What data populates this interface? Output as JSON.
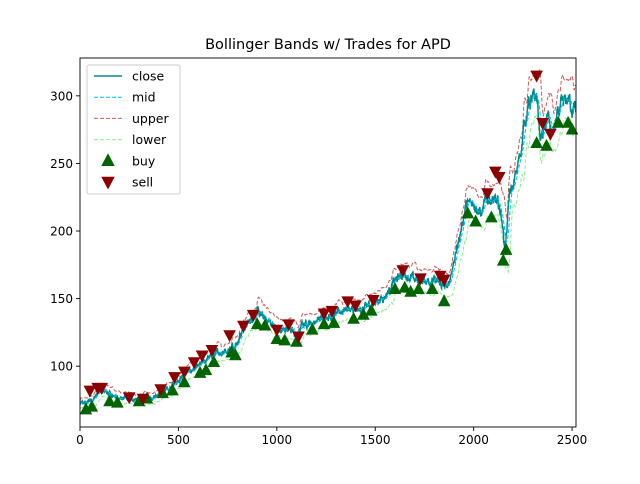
{
  "chart_data": {
    "type": "line",
    "title": "Bollinger Bands w/ Trades for APD",
    "xlabel": "",
    "ylabel": "",
    "xlim": [
      0,
      2520
    ],
    "ylim": [
      55,
      328
    ],
    "grid": false,
    "legend_position": "top-left",
    "x_ticks": [
      0,
      500,
      1000,
      1500,
      2000,
      2500
    ],
    "y_ticks": [
      100,
      150,
      200,
      250,
      300
    ],
    "close_anchors": [
      [
        0,
        72
      ],
      [
        40,
        73
      ],
      [
        80,
        78
      ],
      [
        110,
        82
      ],
      [
        150,
        80
      ],
      [
        200,
        76
      ],
      [
        250,
        76
      ],
      [
        300,
        75
      ],
      [
        350,
        76
      ],
      [
        400,
        80
      ],
      [
        450,
        83
      ],
      [
        500,
        90
      ],
      [
        550,
        96
      ],
      [
        600,
        99
      ],
      [
        650,
        106
      ],
      [
        700,
        110
      ],
      [
        750,
        112
      ],
      [
        800,
        118
      ],
      [
        830,
        128
      ],
      [
        860,
        133
      ],
      [
        900,
        140
      ],
      [
        930,
        136
      ],
      [
        960,
        133
      ],
      [
        1000,
        128
      ],
      [
        1030,
        126
      ],
      [
        1060,
        130
      ],
      [
        1100,
        121
      ],
      [
        1130,
        131
      ],
      [
        1160,
        132
      ],
      [
        1200,
        133
      ],
      [
        1250,
        137
      ],
      [
        1300,
        138
      ],
      [
        1350,
        143
      ],
      [
        1400,
        140
      ],
      [
        1450,
        143
      ],
      [
        1500,
        148
      ],
      [
        1550,
        152
      ],
      [
        1600,
        163
      ],
      [
        1640,
        168
      ],
      [
        1680,
        166
      ],
      [
        1720,
        162
      ],
      [
        1760,
        164
      ],
      [
        1800,
        163
      ],
      [
        1840,
        160
      ],
      [
        1870,
        158
      ],
      [
        1890,
        172
      ],
      [
        1920,
        190
      ],
      [
        1960,
        218
      ],
      [
        2000,
        222
      ],
      [
        2040,
        212
      ],
      [
        2060,
        222
      ],
      [
        2080,
        225
      ],
      [
        2100,
        222
      ],
      [
        2120,
        220
      ],
      [
        2140,
        213
      ],
      [
        2160,
        185
      ],
      [
        2180,
        225
      ],
      [
        2200,
        232
      ],
      [
        2220,
        245
      ],
      [
        2240,
        260
      ],
      [
        2260,
        282
      ],
      [
        2280,
        295
      ],
      [
        2300,
        296
      ],
      [
        2320,
        300
      ],
      [
        2340,
        268
      ],
      [
        2360,
        275
      ],
      [
        2380,
        285
      ],
      [
        2400,
        270
      ],
      [
        2420,
        282
      ],
      [
        2440,
        290
      ],
      [
        2460,
        294
      ],
      [
        2480,
        298
      ],
      [
        2500,
        292
      ],
      [
        2520,
        288
      ]
    ],
    "band_window": 20,
    "band_width_fraction": 0.035,
    "series": [
      {
        "name": "close",
        "color": "#008B8B",
        "style": "solid"
      },
      {
        "name": "mid",
        "color": "#00BFFF",
        "style": "dashed"
      },
      {
        "name": "upper",
        "color": "#CD5C5C",
        "style": "dashed"
      },
      {
        "name": "lower",
        "color": "#90EE90",
        "style": "dashed"
      }
    ],
    "markers": [
      {
        "name": "buy",
        "color": "#006400",
        "shape": "triangle-up"
      },
      {
        "name": "sell",
        "color": "#8B0000",
        "shape": "triangle-down"
      }
    ],
    "buy_signals": [
      [
        30,
        68
      ],
      [
        60,
        70
      ],
      [
        150,
        74
      ],
      [
        190,
        73
      ],
      [
        300,
        74
      ],
      [
        340,
        76
      ],
      [
        420,
        80
      ],
      [
        470,
        82
      ],
      [
        530,
        88
      ],
      [
        610,
        95
      ],
      [
        640,
        97
      ],
      [
        680,
        103
      ],
      [
        770,
        110
      ],
      [
        790,
        108
      ],
      [
        900,
        131
      ],
      [
        940,
        130
      ],
      [
        1000,
        120
      ],
      [
        1040,
        119
      ],
      [
        1100,
        118
      ],
      [
        1180,
        127
      ],
      [
        1240,
        131
      ],
      [
        1290,
        132
      ],
      [
        1390,
        135
      ],
      [
        1440,
        138
      ],
      [
        1480,
        141
      ],
      [
        1600,
        157
      ],
      [
        1650,
        158
      ],
      [
        1680,
        155
      ],
      [
        1720,
        157
      ],
      [
        1790,
        157
      ],
      [
        1850,
        148
      ],
      [
        1970,
        213
      ],
      [
        2010,
        207
      ],
      [
        2090,
        210
      ],
      [
        2150,
        178
      ],
      [
        2165,
        186
      ],
      [
        2320,
        265
      ],
      [
        2370,
        263
      ],
      [
        2430,
        280
      ],
      [
        2480,
        280
      ],
      [
        2500,
        275
      ]
    ],
    "sell_signals": [
      [
        50,
        82
      ],
      [
        90,
        84
      ],
      [
        110,
        84
      ],
      [
        250,
        77
      ],
      [
        320,
        76
      ],
      [
        410,
        83
      ],
      [
        480,
        92
      ],
      [
        530,
        96
      ],
      [
        580,
        103
      ],
      [
        620,
        108
      ],
      [
        670,
        112
      ],
      [
        760,
        123
      ],
      [
        830,
        130
      ],
      [
        880,
        138
      ],
      [
        1000,
        127
      ],
      [
        1060,
        131
      ],
      [
        1110,
        122
      ],
      [
        1240,
        139
      ],
      [
        1280,
        141
      ],
      [
        1360,
        148
      ],
      [
        1400,
        145
      ],
      [
        1490,
        149
      ],
      [
        1640,
        171
      ],
      [
        1730,
        165
      ],
      [
        1830,
        167
      ],
      [
        1850,
        164
      ],
      [
        2070,
        228
      ],
      [
        2110,
        244
      ],
      [
        2130,
        240
      ],
      [
        2320,
        315
      ],
      [
        2350,
        280
      ],
      [
        2390,
        272
      ]
    ]
  }
}
